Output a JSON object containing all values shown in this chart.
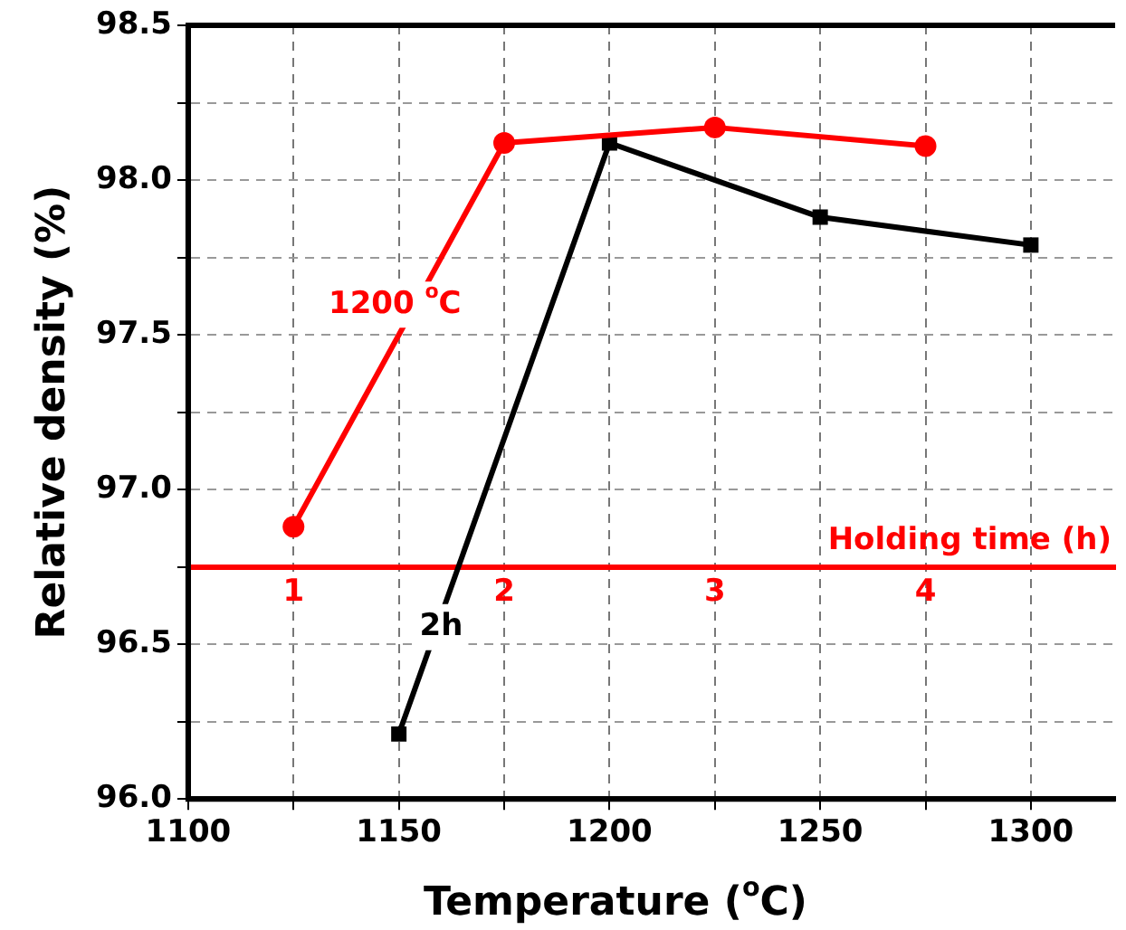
{
  "chart_data": {
    "type": "line",
    "xlabel": "Temperature ($^{o}$C)",
    "ylabel": "Relative density (%)",
    "x2label": "Holding time (h)",
    "xlim": [
      1100,
      1320
    ],
    "xticks": [
      1100,
      {
        "value": 1125,
        "label": null
      },
      1150,
      {
        "value": 1175,
        "label": null
      },
      1200,
      {
        "value": 1225,
        "label": null
      },
      1250,
      {
        "value": 1275,
        "label": null
      },
      1300
    ],
    "x2lim": [
      0.5,
      4.9
    ],
    "x2ticks": [
      1,
      2,
      3,
      4
    ],
    "ylim": [
      96.0,
      98.5
    ],
    "yticks": [
      {
        "value": 96.0,
        "label": "96.0"
      },
      {
        "value": 96.25,
        "label": null
      },
      {
        "value": 96.5,
        "label": "96.5"
      },
      {
        "value": 96.75,
        "label": null
      },
      {
        "value": 97.0,
        "label": "97.0"
      },
      {
        "value": 97.25,
        "label": null
      },
      {
        "value": 97.5,
        "label": "97.5"
      },
      {
        "value": 97.75,
        "label": null
      },
      {
        "value": 98.0,
        "label": "98.0"
      },
      {
        "value": 98.25,
        "label": null
      },
      {
        "value": 98.5,
        "label": "98.5"
      }
    ],
    "grid": true,
    "legend": false,
    "line_style": "solid",
    "series": [
      {
        "name": "1200 $^{o}$C",
        "color": "#ff0000",
        "axis": "x2",
        "marker": "circle",
        "x": [
          1,
          2,
          3,
          4
        ],
        "values": [
          96.88,
          98.12,
          98.17,
          98.11
        ]
      },
      {
        "name": "2h",
        "color": "#000000",
        "marker": "square",
        "x": [
          1150,
          1200,
          1250,
          1300
        ],
        "values": [
          96.21,
          98.12,
          97.88,
          97.79
        ]
      }
    ]
  }
}
